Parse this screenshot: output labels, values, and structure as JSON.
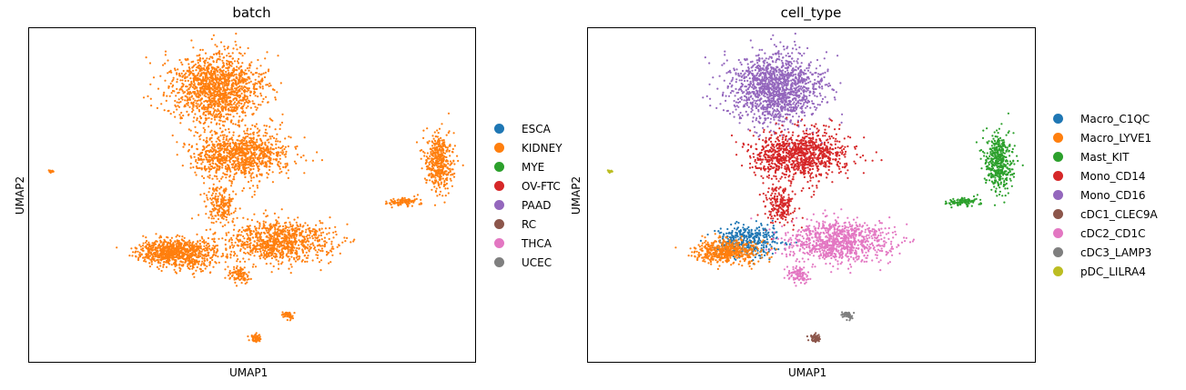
{
  "chart_data": [
    {
      "type": "scatter",
      "title": "batch",
      "xlabel": "UMAP1",
      "ylabel": "UMAP2",
      "grid": false,
      "legend_placement": "right",
      "legend": [
        {
          "label": "ESCA",
          "color": "#1f77b4"
        },
        {
          "label": "KIDNEY",
          "color": "#ff7f0e"
        },
        {
          "label": "MYE",
          "color": "#2ca02c"
        },
        {
          "label": "OV-FTC",
          "color": "#d62728"
        },
        {
          "label": "PAAD",
          "color": "#9467bd"
        },
        {
          "label": "RC",
          "color": "#8c564b"
        },
        {
          "label": "THCA",
          "color": "#e377c2"
        },
        {
          "label": "UCEC",
          "color": "#7f7f7f"
        }
      ],
      "clusters": [
        {
          "category": "KIDNEY",
          "center": [
            0.42,
            0.82
          ],
          "spread": [
            0.085,
            0.09
          ],
          "n": 1400
        },
        {
          "category": "KIDNEY",
          "center": [
            0.47,
            0.62
          ],
          "spread": [
            0.09,
            0.06
          ],
          "n": 1000
        },
        {
          "category": "KIDNEY",
          "center": [
            0.43,
            0.47
          ],
          "spread": [
            0.03,
            0.05
          ],
          "n": 200
        },
        {
          "category": "KIDNEY",
          "center": [
            0.36,
            0.32
          ],
          "spread": [
            0.06,
            0.04
          ],
          "n": 400
        },
        {
          "category": "KIDNEY",
          "center": [
            0.56,
            0.36
          ],
          "spread": [
            0.1,
            0.05
          ],
          "n": 900
        },
        {
          "category": "KIDNEY",
          "center": [
            0.31,
            0.33
          ],
          "spread": [
            0.06,
            0.03
          ],
          "n": 500
        },
        {
          "category": "KIDNEY",
          "center": [
            0.47,
            0.26
          ],
          "spread": [
            0.02,
            0.02
          ],
          "n": 90
        },
        {
          "category": "KIDNEY",
          "center": [
            0.58,
            0.14
          ],
          "spread": [
            0.01,
            0.01
          ],
          "n": 60
        },
        {
          "category": "KIDNEY",
          "center": [
            0.51,
            0.07
          ],
          "spread": [
            0.01,
            0.01
          ],
          "n": 60
        },
        {
          "category": "KIDNEY",
          "center": [
            0.92,
            0.6
          ],
          "spread": [
            0.025,
            0.07
          ],
          "n": 450
        },
        {
          "category": "KIDNEY",
          "center": [
            0.84,
            0.48
          ],
          "spread": [
            0.03,
            0.01
          ],
          "n": 100
        },
        {
          "category": "KIDNEY",
          "center": [
            0.05,
            0.57
          ],
          "spread": [
            0.004,
            0.004
          ],
          "n": 15
        }
      ]
    },
    {
      "type": "scatter",
      "title": "cell_type",
      "xlabel": "UMAP1",
      "ylabel": "UMAP2",
      "grid": false,
      "legend_placement": "right",
      "legend": [
        {
          "label": "Macro_C1QC",
          "color": "#1f77b4"
        },
        {
          "label": "Macro_LYVE1",
          "color": "#ff7f0e"
        },
        {
          "label": "Mast_KIT",
          "color": "#2ca02c"
        },
        {
          "label": "Mono_CD14",
          "color": "#d62728"
        },
        {
          "label": "Mono_CD16",
          "color": "#9467bd"
        },
        {
          "label": "cDC1_CLEC9A",
          "color": "#8c564b"
        },
        {
          "label": "cDC2_CD1C",
          "color": "#e377c2"
        },
        {
          "label": "cDC3_LAMP3",
          "color": "#7f7f7f"
        },
        {
          "label": "pDC_LILRA4",
          "color": "#bcbd22"
        }
      ],
      "clusters": [
        {
          "category": "Mono_CD16",
          "center": [
            0.42,
            0.82
          ],
          "spread": [
            0.085,
            0.09
          ],
          "n": 1400
        },
        {
          "category": "Mono_CD14",
          "center": [
            0.47,
            0.62
          ],
          "spread": [
            0.09,
            0.06
          ],
          "n": 1000
        },
        {
          "category": "Mono_CD14",
          "center": [
            0.43,
            0.47
          ],
          "spread": [
            0.03,
            0.05
          ],
          "n": 200
        },
        {
          "category": "Macro_C1QC",
          "center": [
            0.36,
            0.36
          ],
          "spread": [
            0.06,
            0.04
          ],
          "n": 400
        },
        {
          "category": "cDC2_CD1C",
          "center": [
            0.56,
            0.36
          ],
          "spread": [
            0.1,
            0.05
          ],
          "n": 900
        },
        {
          "category": "Macro_LYVE1",
          "center": [
            0.31,
            0.33
          ],
          "spread": [
            0.06,
            0.03
          ],
          "n": 500
        },
        {
          "category": "cDC2_CD1C",
          "center": [
            0.47,
            0.26
          ],
          "spread": [
            0.02,
            0.02
          ],
          "n": 90
        },
        {
          "category": "cDC3_LAMP3",
          "center": [
            0.58,
            0.14
          ],
          "spread": [
            0.01,
            0.01
          ],
          "n": 60
        },
        {
          "category": "cDC1_CLEC9A",
          "center": [
            0.51,
            0.07
          ],
          "spread": [
            0.01,
            0.01
          ],
          "n": 60
        },
        {
          "category": "Mast_KIT",
          "center": [
            0.92,
            0.6
          ],
          "spread": [
            0.025,
            0.07
          ],
          "n": 450
        },
        {
          "category": "Mast_KIT",
          "center": [
            0.84,
            0.48
          ],
          "spread": [
            0.03,
            0.01
          ],
          "n": 100
        },
        {
          "category": "pDC_LILRA4",
          "center": [
            0.05,
            0.57
          ],
          "spread": [
            0.004,
            0.004
          ],
          "n": 15
        }
      ]
    }
  ]
}
